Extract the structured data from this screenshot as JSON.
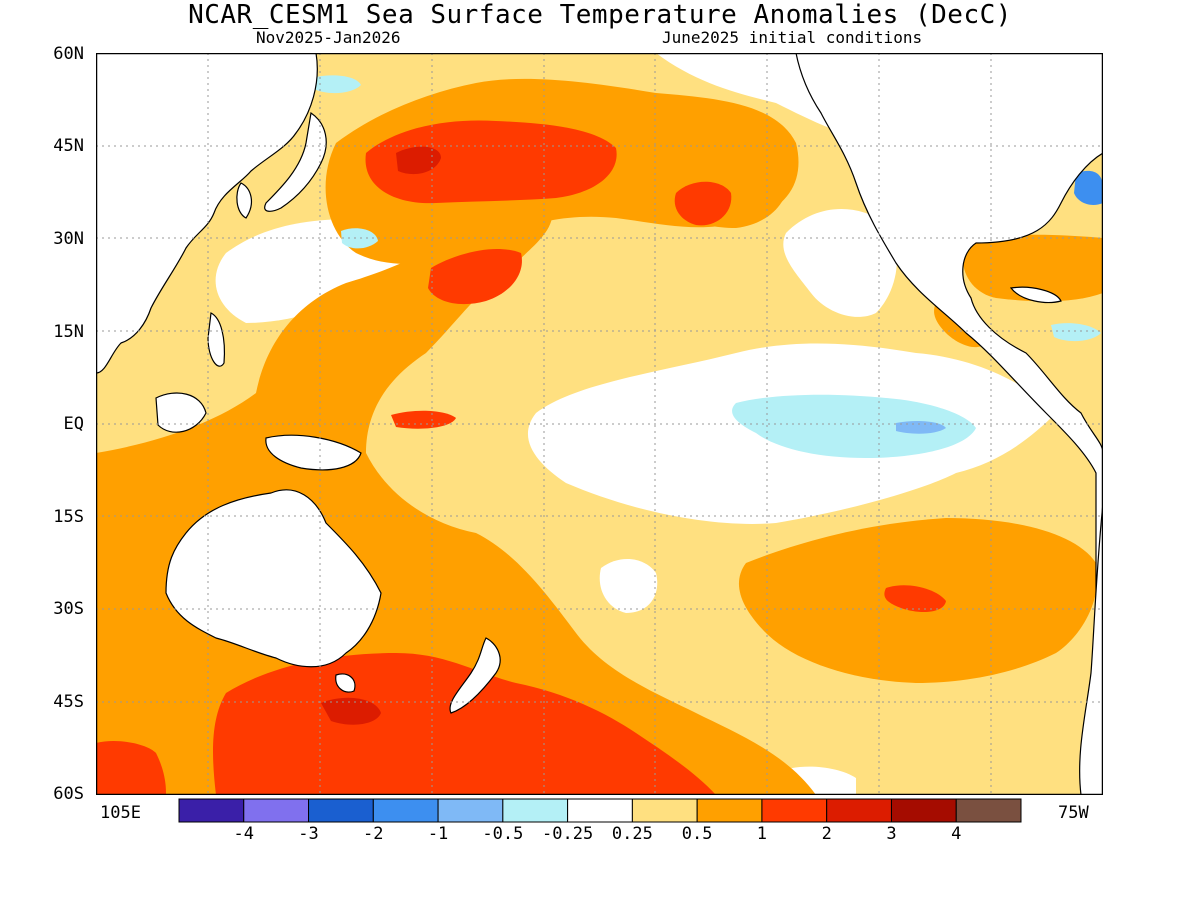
{
  "title": "NCAR_CESM1 Sea Surface Temperature Anomalies (DecC)",
  "subtitle_left": "Nov2025-Jan2026",
  "subtitle_right": "June2025 initial conditions",
  "lat_labels": [
    "60N",
    "45N",
    "30N",
    "15N",
    "EQ",
    "15S",
    "30S",
    "45S",
    "60S"
  ],
  "lon_labels": {
    "west_edge": "105E",
    "east_edge": "75W"
  },
  "colorbar": {
    "colors": [
      "#3a1fa8",
      "#8070ee",
      "#1a5fd0",
      "#3d8ff0",
      "#7fb9f6",
      "#b4f0f6",
      "#ffffff",
      "#ffe080",
      "#ffa000",
      "#ff3a00",
      "#dc1c00",
      "#a50c00",
      "#7a5040"
    ],
    "ticks": [
      "-4",
      "-3",
      "-2",
      "-1",
      "-0.5",
      "-0.25",
      "0.25",
      "0.5",
      "1",
      "2",
      "3",
      "4"
    ]
  },
  "chart_data": {
    "type": "heatmap",
    "title": "NCAR_CESM1 Sea Surface Temperature Anomalies (DecC)",
    "subtitle": "Nov2025-Jan2026 / June2025 initial conditions",
    "lat_range": [
      -60,
      60
    ],
    "lon_range": [
      "105E",
      "75W"
    ],
    "color_levels": [
      -4,
      -3,
      -2,
      -1,
      -0.5,
      -0.25,
      0.25,
      0.5,
      1,
      2,
      3,
      4
    ],
    "grid": true
  }
}
